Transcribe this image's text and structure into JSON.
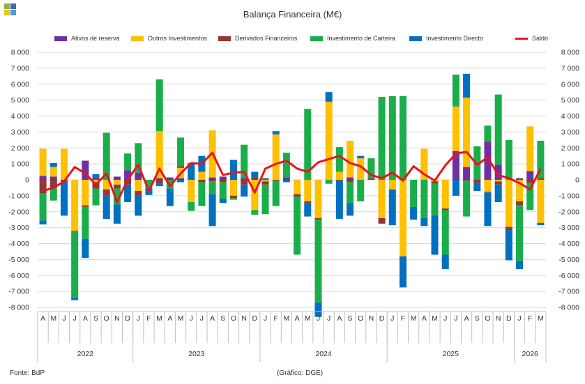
{
  "chart_data": {
    "type": "bar",
    "title": "Balança Financeira (M€)",
    "stacked": true,
    "ylim": [
      -8000,
      8000
    ],
    "ytick_step": 1000,
    "grid": true,
    "legend_position": "top",
    "months": [
      "A",
      "M",
      "J",
      "J",
      "A",
      "S",
      "O",
      "N",
      "D",
      "J",
      "F",
      "M",
      "A",
      "M",
      "J",
      "J",
      "A",
      "S",
      "O",
      "N",
      "D",
      "J",
      "F",
      "M",
      "A",
      "M",
      "J",
      "J",
      "A",
      "S",
      "O",
      "N",
      "D",
      "J",
      "F",
      "M",
      "A",
      "M",
      "J",
      "J",
      "A",
      "S",
      "O",
      "N",
      "D",
      "J",
      "F",
      "M"
    ],
    "years": [
      {
        "label": "2022",
        "start": 0,
        "end": 8
      },
      {
        "label": "2023",
        "start": 9,
        "end": 20
      },
      {
        "label": "2024",
        "start": 21,
        "end": 32
      },
      {
        "label": "2025",
        "start": 33,
        "end": 44
      },
      {
        "label": "2026",
        "start": 45,
        "end": 47
      }
    ],
    "series": [
      {
        "name": "Ativos de reserva",
        "color": "#7030A0",
        "values": [
          250,
          200,
          0,
          0,
          1200,
          150,
          0,
          200,
          600,
          450,
          0,
          100,
          150,
          100,
          0,
          0,
          150,
          200,
          0,
          100,
          0,
          0,
          0,
          150,
          0,
          0,
          0,
          0,
          0,
          150,
          0,
          0,
          0,
          0,
          0,
          0,
          0,
          0,
          0,
          1800,
          800,
          0,
          2400,
          950,
          0,
          100,
          550,
          0
        ]
      },
      {
        "name": "Outros Investimentos",
        "color": "#FFC000",
        "values": [
          1700,
          600,
          1950,
          -3200,
          -1600,
          -150,
          -600,
          -300,
          0,
          -700,
          0,
          2950,
          0,
          650,
          -1400,
          500,
          2950,
          0,
          -1000,
          0,
          -1900,
          -100,
          2850,
          0,
          -900,
          -1350,
          -2400,
          4900,
          500,
          2300,
          1350,
          0,
          -2400,
          -600,
          -4800,
          0,
          1950,
          -100,
          -1800,
          2800,
          4350,
          0,
          -750,
          -100,
          -2950,
          -1350,
          2800,
          -2700
        ]
      },
      {
        "name": "Derivados Financeiros",
        "color": "#943634",
        "values": [
          -850,
          -500,
          -100,
          -50,
          -100,
          -400,
          -400,
          -250,
          -300,
          -300,
          0,
          -250,
          0,
          100,
          0,
          -150,
          -100,
          -150,
          -150,
          -300,
          150,
          -200,
          -50,
          0,
          -150,
          -100,
          -100,
          0,
          -50,
          -150,
          0,
          100,
          -350,
          -50,
          0,
          0,
          0,
          -150,
          -100,
          0,
          -50,
          -200,
          -50,
          -200,
          -200,
          -250,
          -200,
          100
        ]
      },
      {
        "name": "Investimento de Carteira",
        "color": "#1AAE4A",
        "values": [
          -1700,
          -800,
          0,
          -4150,
          -2000,
          -1050,
          2950,
          -1000,
          1050,
          1850,
          -550,
          3250,
          -550,
          1800,
          -550,
          -1500,
          -800,
          -1050,
          -100,
          2100,
          -300,
          -1850,
          -1600,
          1550,
          -3650,
          4450,
          -5200,
          -250,
          1550,
          -1300,
          -1350,
          1250,
          5200,
          5250,
          5250,
          -1700,
          -2400,
          -2000,
          -2800,
          2000,
          -2250,
          2100,
          1000,
          4400,
          2500,
          -3500,
          -1700,
          2350
        ]
      },
      {
        "name": "Investimento Directo",
        "color": "#0070C0",
        "values": [
          -250,
          250,
          -2150,
          -150,
          -1200,
          200,
          -1450,
          -1200,
          -1100,
          -1250,
          -400,
          -150,
          -1100,
          -150,
          1050,
          1000,
          -2000,
          -250,
          1250,
          -750,
          350,
          100,
          200,
          -150,
          0,
          -850,
          -900,
          600,
          -2400,
          -800,
          150,
          0,
          0,
          -2200,
          -1950,
          -800,
          -500,
          -2450,
          -900,
          -1000,
          1500,
          -500,
          -2100,
          -1100,
          -1900,
          -500,
          0,
          -150
        ]
      }
    ],
    "line": {
      "name": "Saldo",
      "color": "#E8141C",
      "values": [
        -700,
        -500,
        -100,
        800,
        400,
        -300,
        400,
        -1400,
        0,
        950,
        -700,
        700,
        -400,
        400,
        1050,
        1000,
        1700,
        300,
        450,
        500,
        -800,
        700,
        1000,
        1200,
        700,
        500,
        1100,
        1300,
        1500,
        1050,
        850,
        300,
        100,
        450,
        -50,
        850,
        350,
        -50,
        900,
        1650,
        1750,
        950,
        1400,
        300,
        100,
        -200,
        -600,
        700
      ]
    }
  },
  "y_tick_labels": [
    "8 000",
    "7 000",
    "6 000",
    "5 000",
    "4 000",
    "3 000",
    "2 000",
    "1 000",
    "0",
    "-1 000",
    "-2 000",
    "-3 000",
    "-4 000",
    "-5 000",
    "-6 000",
    "-7 000",
    "-8 000"
  ],
  "source_label": "Fonte: BdP",
  "credit_label": "(Gráfico: DGE)",
  "logo_colors": [
    "#8DB63C",
    "#3E6AB4",
    "#F2C417",
    "#4C9ED9"
  ]
}
